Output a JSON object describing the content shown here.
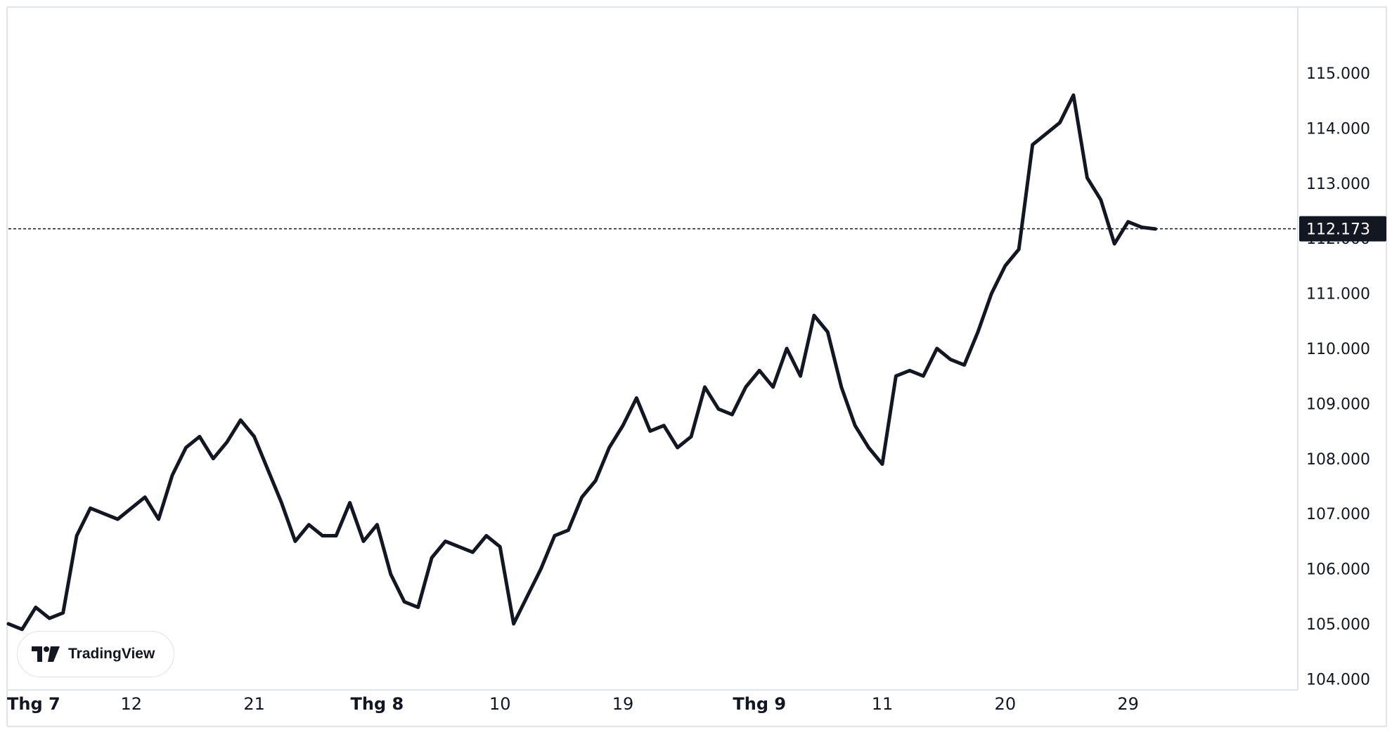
{
  "chart_data": {
    "type": "line",
    "y_range": [
      103.8,
      116.2
    ],
    "y_ticks": [
      "115.000",
      "114.000",
      "113.000",
      "112.000",
      "111.000",
      "110.000",
      "109.000",
      "108.000",
      "107.000",
      "106.000",
      "105.000",
      "104.000"
    ],
    "y_tick_values": [
      115,
      114,
      113,
      112,
      111,
      110,
      109,
      108,
      107,
      106,
      105,
      104
    ],
    "x_ticks": [
      {
        "label": "Thg 7",
        "idx": 0,
        "bold": true
      },
      {
        "label": "12",
        "idx": 9,
        "bold": false
      },
      {
        "label": "21",
        "idx": 18,
        "bold": false
      },
      {
        "label": "Thg 8",
        "idx": 27,
        "bold": true
      },
      {
        "label": "10",
        "idx": 36,
        "bold": false
      },
      {
        "label": "19",
        "idx": 45,
        "bold": false
      },
      {
        "label": "Thg 9",
        "idx": 55,
        "bold": true
      },
      {
        "label": "11",
        "idx": 64,
        "bold": false
      },
      {
        "label": "20",
        "idx": 73,
        "bold": false
      },
      {
        "label": "29",
        "idx": 82,
        "bold": false
      }
    ],
    "x_range": [
      0,
      90
    ],
    "series": [
      {
        "values": [
          105.0,
          104.9,
          105.3,
          105.1,
          105.2,
          106.6,
          107.1,
          107.0,
          106.9,
          107.1,
          107.3,
          106.9,
          107.7,
          108.2,
          108.4,
          108.0,
          108.3,
          108.7,
          108.4,
          107.8,
          107.2,
          106.5,
          106.8,
          106.6,
          106.6,
          107.2,
          106.5,
          106.8,
          105.9,
          105.4,
          105.3,
          106.2,
          106.5,
          106.4,
          106.3,
          106.6,
          106.4,
          105.0,
          105.5,
          106.0,
          106.6,
          106.7,
          107.3,
          107.6,
          108.2,
          108.6,
          109.1,
          108.5,
          108.6,
          108.2,
          108.4,
          109.3,
          108.9,
          108.8,
          109.3,
          109.6,
          109.3,
          110.0,
          109.5,
          110.6,
          110.3,
          109.3,
          108.6,
          108.2,
          107.9,
          109.5,
          109.6,
          109.5,
          110.0,
          109.8,
          109.7,
          110.3,
          111.0,
          111.5,
          111.8,
          113.7,
          113.9,
          114.1,
          114.6,
          113.1,
          112.7,
          111.9,
          112.3,
          112.2,
          112.17
        ],
        "color": "#131722"
      }
    ],
    "last_value_label": "112.173",
    "last_value": 112.173
  },
  "watermark": {
    "brand_text": "TradingView",
    "icon": "tradingview-logo-icon"
  },
  "colors": {
    "line": "#131722",
    "border": "#e0e3eb",
    "label_bg": "#131722",
    "label_text": "#ffffff"
  }
}
